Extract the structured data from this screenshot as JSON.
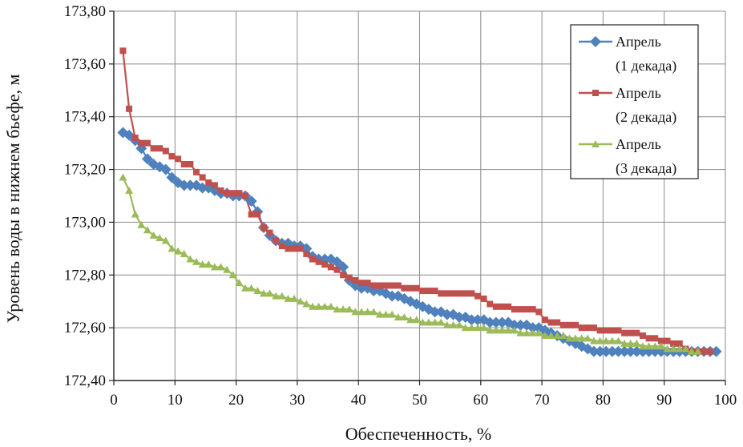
{
  "chart_data": {
    "type": "line",
    "xlabel": "Обеспеченность, %",
    "ylabel": "Уровень воды в нижнем бьефе, м",
    "xlim": [
      0,
      100
    ],
    "ylim": [
      172.4,
      173.8
    ],
    "xticks": [
      "0",
      "10",
      "20",
      "30",
      "40",
      "50",
      "60",
      "70",
      "80",
      "90",
      "100"
    ],
    "yticks": [
      "172,40",
      "172,60",
      "172,80",
      "173,00",
      "173,20",
      "173,40",
      "173,60",
      "173,80"
    ],
    "grid": true,
    "legend_position": "top-right",
    "series": [
      {
        "name": "Апрель (1 декада)",
        "legend_lines": [
          "Апрель",
          "(1 декада)"
        ],
        "color": "#4f81bd",
        "marker": "diamond",
        "points": [
          [
            1.5,
            173.34
          ],
          [
            2.5,
            173.33
          ],
          [
            3.5,
            173.31
          ],
          [
            4.5,
            173.28
          ],
          [
            5.5,
            173.24
          ],
          [
            6.5,
            173.22
          ],
          [
            7.5,
            173.21
          ],
          [
            8.5,
            173.2
          ],
          [
            9.5,
            173.17
          ],
          [
            10.5,
            173.15
          ],
          [
            11.5,
            173.14
          ],
          [
            12.5,
            173.14
          ],
          [
            13.5,
            173.14
          ],
          [
            14.5,
            173.13
          ],
          [
            15.5,
            173.13
          ],
          [
            16.5,
            173.12
          ],
          [
            17.5,
            173.11
          ],
          [
            18.5,
            173.11
          ],
          [
            19.5,
            173.1
          ],
          [
            20.5,
            173.1
          ],
          [
            21.5,
            173.1
          ],
          [
            22.5,
            173.08
          ],
          [
            23.5,
            173.04
          ],
          [
            24.5,
            172.98
          ],
          [
            25.5,
            172.95
          ],
          [
            26.5,
            172.93
          ],
          [
            27.5,
            172.92
          ],
          [
            28.5,
            172.92
          ],
          [
            29.5,
            172.91
          ],
          [
            30.5,
            172.91
          ],
          [
            31.5,
            172.9
          ],
          [
            32.5,
            172.87
          ],
          [
            33.5,
            172.86
          ],
          [
            34.5,
            172.86
          ],
          [
            35.5,
            172.86
          ],
          [
            36.5,
            172.85
          ],
          [
            37.5,
            172.83
          ],
          [
            38.5,
            172.78
          ],
          [
            39.5,
            172.76
          ],
          [
            40.5,
            172.75
          ],
          [
            41.5,
            172.75
          ],
          [
            42.5,
            172.74
          ],
          [
            43.5,
            172.74
          ],
          [
            44.5,
            172.73
          ],
          [
            45.5,
            172.72
          ],
          [
            46.5,
            172.72
          ],
          [
            47.5,
            172.71
          ],
          [
            48.5,
            172.7
          ],
          [
            49.5,
            172.69
          ],
          [
            50.5,
            172.68
          ],
          [
            51.5,
            172.67
          ],
          [
            52.5,
            172.66
          ],
          [
            53.5,
            172.66
          ],
          [
            54.5,
            172.65
          ],
          [
            55.5,
            172.65
          ],
          [
            56.5,
            172.64
          ],
          [
            57.5,
            172.64
          ],
          [
            58.5,
            172.63
          ],
          [
            59.5,
            172.63
          ],
          [
            60.5,
            172.63
          ],
          [
            61.5,
            172.62
          ],
          [
            62.5,
            172.62
          ],
          [
            63.5,
            172.62
          ],
          [
            64.5,
            172.62
          ],
          [
            65.5,
            172.61
          ],
          [
            66.5,
            172.61
          ],
          [
            67.5,
            172.61
          ],
          [
            68.5,
            172.6
          ],
          [
            69.5,
            172.6
          ],
          [
            70.5,
            172.59
          ],
          [
            71.5,
            172.58
          ],
          [
            72.5,
            172.57
          ],
          [
            73.5,
            172.56
          ],
          [
            74.5,
            172.55
          ],
          [
            75.5,
            172.54
          ],
          [
            76.5,
            172.53
          ],
          [
            77.5,
            172.52
          ],
          [
            78.5,
            172.51
          ],
          [
            79.5,
            172.51
          ],
          [
            80.5,
            172.51
          ],
          [
            81.5,
            172.51
          ],
          [
            82.5,
            172.51
          ],
          [
            83.5,
            172.51
          ],
          [
            84.5,
            172.51
          ],
          [
            85.5,
            172.51
          ],
          [
            86.5,
            172.51
          ],
          [
            87.5,
            172.51
          ],
          [
            88.5,
            172.51
          ],
          [
            89.5,
            172.51
          ],
          [
            90.5,
            172.51
          ],
          [
            91.5,
            172.51
          ],
          [
            92.5,
            172.51
          ],
          [
            93.5,
            172.51
          ],
          [
            94.5,
            172.51
          ],
          [
            95.5,
            172.51
          ],
          [
            96.5,
            172.51
          ],
          [
            97.5,
            172.51
          ],
          [
            98.5,
            172.51
          ]
        ]
      },
      {
        "name": "Апрель (2 декада)",
        "legend_lines": [
          "Апрель",
          "(2 декада)"
        ],
        "color": "#c0504d",
        "marker": "square",
        "points": [
          [
            1.5,
            173.65
          ],
          [
            2.5,
            173.43
          ],
          [
            3.5,
            173.32
          ],
          [
            4.5,
            173.3
          ],
          [
            5.5,
            173.3
          ],
          [
            6.5,
            173.28
          ],
          [
            7.5,
            173.28
          ],
          [
            8.5,
            173.27
          ],
          [
            9.5,
            173.25
          ],
          [
            10.5,
            173.24
          ],
          [
            11.5,
            173.22
          ],
          [
            12.5,
            173.22
          ],
          [
            13.5,
            173.19
          ],
          [
            14.5,
            173.17
          ],
          [
            15.5,
            173.15
          ],
          [
            16.5,
            173.14
          ],
          [
            17.5,
            173.12
          ],
          [
            18.5,
            173.11
          ],
          [
            19.5,
            173.11
          ],
          [
            20.5,
            173.11
          ],
          [
            21.5,
            173.1
          ],
          [
            22.5,
            173.03
          ],
          [
            23.5,
            173.03
          ],
          [
            24.5,
            172.98
          ],
          [
            25.5,
            172.96
          ],
          [
            26.5,
            172.93
          ],
          [
            27.5,
            172.91
          ],
          [
            28.5,
            172.9
          ],
          [
            29.5,
            172.9
          ],
          [
            30.5,
            172.9
          ],
          [
            31.5,
            172.88
          ],
          [
            32.5,
            172.86
          ],
          [
            33.5,
            172.85
          ],
          [
            34.5,
            172.84
          ],
          [
            35.5,
            172.83
          ],
          [
            36.5,
            172.82
          ],
          [
            37.5,
            172.8
          ],
          [
            38.5,
            172.79
          ],
          [
            39.5,
            172.78
          ],
          [
            40.5,
            172.77
          ],
          [
            41.5,
            172.77
          ],
          [
            42.5,
            172.76
          ],
          [
            43.5,
            172.76
          ],
          [
            44.5,
            172.76
          ],
          [
            45.5,
            172.76
          ],
          [
            46.5,
            172.76
          ],
          [
            47.5,
            172.75
          ],
          [
            48.5,
            172.75
          ],
          [
            49.5,
            172.75
          ],
          [
            50.5,
            172.74
          ],
          [
            51.5,
            172.74
          ],
          [
            52.5,
            172.74
          ],
          [
            53.5,
            172.73
          ],
          [
            54.5,
            172.73
          ],
          [
            55.5,
            172.73
          ],
          [
            56.5,
            172.73
          ],
          [
            57.5,
            172.73
          ],
          [
            58.5,
            172.73
          ],
          [
            59.5,
            172.72
          ],
          [
            60.5,
            172.71
          ],
          [
            61.5,
            172.69
          ],
          [
            62.5,
            172.68
          ],
          [
            63.5,
            172.68
          ],
          [
            64.5,
            172.68
          ],
          [
            65.5,
            172.67
          ],
          [
            66.5,
            172.67
          ],
          [
            67.5,
            172.67
          ],
          [
            68.5,
            172.67
          ],
          [
            69.5,
            172.66
          ],
          [
            70.5,
            172.63
          ],
          [
            71.5,
            172.62
          ],
          [
            72.5,
            172.62
          ],
          [
            73.5,
            172.61
          ],
          [
            74.5,
            172.61
          ],
          [
            75.5,
            172.61
          ],
          [
            76.5,
            172.6
          ],
          [
            77.5,
            172.6
          ],
          [
            78.5,
            172.6
          ],
          [
            79.5,
            172.59
          ],
          [
            80.5,
            172.59
          ],
          [
            81.5,
            172.59
          ],
          [
            82.5,
            172.59
          ],
          [
            83.5,
            172.58
          ],
          [
            84.5,
            172.58
          ],
          [
            85.5,
            172.58
          ],
          [
            86.5,
            172.57
          ],
          [
            87.5,
            172.56
          ],
          [
            88.5,
            172.56
          ],
          [
            89.5,
            172.55
          ],
          [
            90.5,
            172.55
          ],
          [
            91.5,
            172.54
          ],
          [
            92.5,
            172.54
          ],
          [
            93.5,
            172.52
          ],
          [
            94.5,
            172.51
          ],
          [
            95.5,
            172.51
          ],
          [
            96.5,
            172.51
          ],
          [
            97.5,
            172.51
          ]
        ]
      },
      {
        "name": "Апрель (3 декада)",
        "legend_lines": [
          "Апрель",
          "(3 декада)"
        ],
        "color": "#9bbb59",
        "marker": "triangle",
        "points": [
          [
            1.5,
            173.17
          ],
          [
            2.5,
            173.12
          ],
          [
            3.5,
            173.03
          ],
          [
            4.5,
            172.99
          ],
          [
            5.5,
            172.97
          ],
          [
            6.5,
            172.95
          ],
          [
            7.5,
            172.94
          ],
          [
            8.5,
            172.93
          ],
          [
            9.5,
            172.9
          ],
          [
            10.5,
            172.89
          ],
          [
            11.5,
            172.88
          ],
          [
            12.5,
            172.86
          ],
          [
            13.5,
            172.85
          ],
          [
            14.5,
            172.84
          ],
          [
            15.5,
            172.84
          ],
          [
            16.5,
            172.83
          ],
          [
            17.5,
            172.83
          ],
          [
            18.5,
            172.82
          ],
          [
            19.5,
            172.8
          ],
          [
            20.5,
            172.77
          ],
          [
            21.5,
            172.75
          ],
          [
            22.5,
            172.75
          ],
          [
            23.5,
            172.74
          ],
          [
            24.5,
            172.73
          ],
          [
            25.5,
            172.73
          ],
          [
            26.5,
            172.72
          ],
          [
            27.5,
            172.72
          ],
          [
            28.5,
            172.71
          ],
          [
            29.5,
            172.71
          ],
          [
            30.5,
            172.7
          ],
          [
            31.5,
            172.69
          ],
          [
            32.5,
            172.68
          ],
          [
            33.5,
            172.68
          ],
          [
            34.5,
            172.68
          ],
          [
            35.5,
            172.68
          ],
          [
            36.5,
            172.67
          ],
          [
            37.5,
            172.67
          ],
          [
            38.5,
            172.67
          ],
          [
            39.5,
            172.66
          ],
          [
            40.5,
            172.66
          ],
          [
            41.5,
            172.66
          ],
          [
            42.5,
            172.66
          ],
          [
            43.5,
            172.65
          ],
          [
            44.5,
            172.65
          ],
          [
            45.5,
            172.65
          ],
          [
            46.5,
            172.64
          ],
          [
            47.5,
            172.64
          ],
          [
            48.5,
            172.63
          ],
          [
            49.5,
            172.63
          ],
          [
            50.5,
            172.62
          ],
          [
            51.5,
            172.62
          ],
          [
            52.5,
            172.62
          ],
          [
            53.5,
            172.62
          ],
          [
            54.5,
            172.61
          ],
          [
            55.5,
            172.61
          ],
          [
            56.5,
            172.61
          ],
          [
            57.5,
            172.6
          ],
          [
            58.5,
            172.6
          ],
          [
            59.5,
            172.6
          ],
          [
            60.5,
            172.6
          ],
          [
            61.5,
            172.59
          ],
          [
            62.5,
            172.59
          ],
          [
            63.5,
            172.59
          ],
          [
            64.5,
            172.59
          ],
          [
            65.5,
            172.59
          ],
          [
            66.5,
            172.58
          ],
          [
            67.5,
            172.58
          ],
          [
            68.5,
            172.58
          ],
          [
            69.5,
            172.58
          ],
          [
            70.5,
            172.57
          ],
          [
            71.5,
            172.57
          ],
          [
            72.5,
            172.57
          ],
          [
            73.5,
            172.57
          ],
          [
            74.5,
            172.56
          ],
          [
            75.5,
            172.56
          ],
          [
            76.5,
            172.56
          ],
          [
            77.5,
            172.56
          ],
          [
            78.5,
            172.55
          ],
          [
            79.5,
            172.55
          ],
          [
            80.5,
            172.55
          ],
          [
            81.5,
            172.55
          ],
          [
            82.5,
            172.55
          ],
          [
            83.5,
            172.54
          ],
          [
            84.5,
            172.54
          ],
          [
            85.5,
            172.54
          ],
          [
            86.5,
            172.53
          ],
          [
            87.5,
            172.53
          ],
          [
            88.5,
            172.53
          ],
          [
            89.5,
            172.53
          ],
          [
            90.5,
            172.52
          ],
          [
            91.5,
            172.52
          ],
          [
            92.5,
            172.52
          ],
          [
            93.5,
            172.52
          ],
          [
            94.5,
            172.51
          ],
          [
            95.5,
            172.51
          ]
        ]
      }
    ]
  }
}
